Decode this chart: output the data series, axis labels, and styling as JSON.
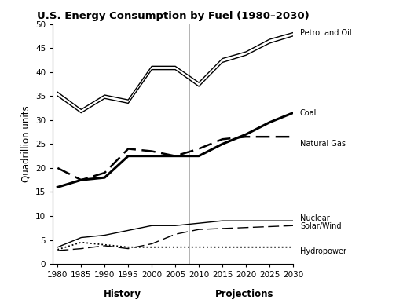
{
  "title": "U.S. Energy Consumption by Fuel (1980–2030)",
  "ylabel": "Quadrillion units",
  "xlabel_history": "History",
  "xlabel_projections": "Projections",
  "years": [
    1980,
    1985,
    1990,
    1995,
    2000,
    2005,
    2010,
    2015,
    2020,
    2025,
    2030
  ],
  "petrol_and_oil_lower": [
    35.0,
    31.5,
    34.5,
    33.5,
    40.5,
    40.5,
    37.0,
    42.0,
    43.5,
    46.0,
    47.5
  ],
  "petrol_and_oil_upper": [
    35.8,
    32.2,
    35.2,
    34.2,
    41.2,
    41.2,
    37.8,
    42.8,
    44.2,
    46.8,
    48.2
  ],
  "coal": [
    16.0,
    17.5,
    18.0,
    22.5,
    22.5,
    22.5,
    22.5,
    25.0,
    27.0,
    29.5,
    31.5
  ],
  "natural_gas": [
    20.0,
    17.5,
    19.0,
    24.0,
    23.5,
    22.5,
    24.0,
    26.0,
    26.5,
    26.5,
    26.5
  ],
  "nuclear": [
    3.5,
    5.5,
    6.0,
    7.0,
    8.0,
    8.0,
    8.5,
    9.0,
    9.0,
    9.0,
    9.0
  ],
  "solar_wind": [
    2.8,
    3.2,
    3.8,
    3.2,
    4.2,
    6.2,
    7.2,
    7.4,
    7.6,
    7.8,
    8.0
  ],
  "hydropower": [
    3.0,
    4.5,
    4.0,
    3.5,
    3.5,
    3.5,
    3.5,
    3.5,
    3.5,
    3.5,
    3.5
  ],
  "label_petrol": "Petrol and Oil",
  "label_coal": "Coal",
  "label_gas": "Natural Gas",
  "label_nuclear": "Nuclear",
  "label_solar": "Solar/Wind",
  "label_hydro": "Hydropower",
  "ylim": [
    0,
    50
  ],
  "yticks": [
    0,
    5,
    10,
    15,
    20,
    25,
    30,
    35,
    40,
    45,
    50
  ],
  "xticks": [
    1980,
    1985,
    1990,
    1995,
    2000,
    2005,
    2010,
    2015,
    2020,
    2025,
    2030
  ],
  "history_boundary": 2008,
  "background_color": "#ffffff"
}
